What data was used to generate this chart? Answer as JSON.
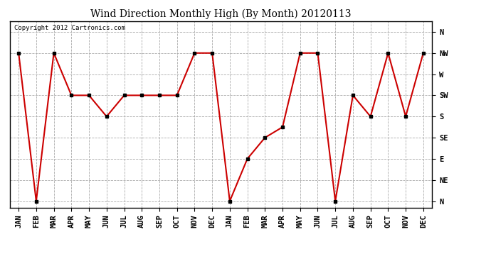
{
  "title": "Wind Direction Monthly High (By Month) 20120113",
  "copyright": "Copyright 2012 Cartronics.com",
  "x_labels": [
    "JAN",
    "FEB",
    "MAR",
    "APR",
    "MAY",
    "JUN",
    "JUL",
    "AUG",
    "SEP",
    "OCT",
    "NOV",
    "DEC",
    "JAN",
    "FEB",
    "MAR",
    "APR",
    "MAY",
    "JUN",
    "JUL",
    "AUG",
    "SEP",
    "OCT",
    "NOV",
    "DEC"
  ],
  "y_labels": [
    "N",
    "NE",
    "E",
    "SE",
    "S",
    "SW",
    "W",
    "NW",
    "N"
  ],
  "values": [
    7,
    0,
    7,
    5,
    5,
    4,
    5,
    5,
    5,
    5,
    7,
    7,
    0,
    2,
    3,
    3.5,
    7,
    7,
    0,
    5,
    4,
    7,
    4,
    7
  ],
  "line_color": "#cc0000",
  "marker": "s",
  "marker_size": 3,
  "bg_color": "#ffffff",
  "grid_color": "#aaaaaa",
  "title_fontsize": 10,
  "tick_fontsize": 7.5,
  "copyright_fontsize": 6.5
}
